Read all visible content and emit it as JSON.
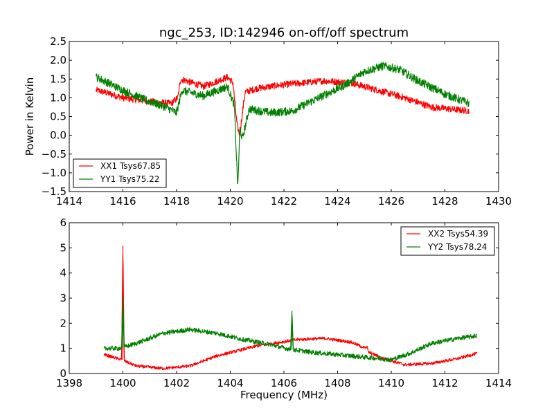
{
  "chart_data": [
    {
      "type": "line",
      "title": "ngc_253, ID:142946 on-off/off spectrum",
      "xlabel": "",
      "ylabel": "Power in Kelvin",
      "xlim": [
        1414,
        1430
      ],
      "ylim": [
        -1.5,
        2.5
      ],
      "xticks": [
        "1414",
        "1416",
        "1418",
        "1420",
        "1422",
        "1424",
        "1426",
        "1428",
        "1430"
      ],
      "yticks": [
        "−1.5",
        "−1.0",
        "−0.5",
        "0.0",
        "0.5",
        "1.0",
        "1.5",
        "2.0",
        "2.5"
      ],
      "legend_position": "lower-left",
      "grid": false,
      "series": [
        {
          "name": "XX1 Tsys67.85",
          "color": "#ff0000",
          "noise": 0.09,
          "x": [
            1415.0,
            1415.3,
            1416.0,
            1417.0,
            1417.8,
            1418.05,
            1418.15,
            1419.0,
            1419.9,
            1420.1,
            1420.25,
            1420.35,
            1420.55,
            1421.0,
            1422.0,
            1423.5,
            1424.5,
            1425.5,
            1426.5,
            1427.5,
            1428.9
          ],
          "y": [
            1.2,
            1.15,
            1.0,
            0.9,
            0.85,
            1.0,
            1.5,
            1.3,
            1.55,
            1.4,
            0.3,
            0.0,
            1.15,
            1.25,
            1.35,
            1.45,
            1.4,
            1.2,
            1.0,
            0.75,
            0.65
          ]
        },
        {
          "name": "YY1 Tsys75.22",
          "color": "#008000",
          "noise": 0.11,
          "x": [
            1415.0,
            1415.3,
            1416.0,
            1416.8,
            1417.6,
            1418.0,
            1418.2,
            1419.0,
            1419.9,
            1420.15,
            1420.28,
            1420.36,
            1420.45,
            1420.7,
            1421.5,
            1422.3,
            1423.3,
            1424.3,
            1425.0,
            1425.7,
            1426.3,
            1427.0,
            1428.0,
            1428.9
          ],
          "y": [
            1.55,
            1.45,
            1.2,
            0.95,
            0.75,
            0.6,
            1.2,
            1.05,
            1.3,
            0.8,
            -1.4,
            0.2,
            -0.1,
            0.7,
            0.6,
            0.65,
            1.0,
            1.35,
            1.7,
            1.85,
            1.75,
            1.45,
            1.1,
            0.85
          ]
        }
      ]
    },
    {
      "type": "line",
      "title": "",
      "xlabel": "Frequency (MHz)",
      "ylabel": "",
      "xlim": [
        1398,
        1414
      ],
      "ylim": [
        0,
        6
      ],
      "xticks": [
        "1398",
        "1400",
        "1402",
        "1404",
        "1406",
        "1408",
        "1410",
        "1412",
        "1414"
      ],
      "yticks": [
        "0",
        "1",
        "2",
        "3",
        "4",
        "5",
        "6"
      ],
      "legend_position": "upper-right",
      "grid": false,
      "series": [
        {
          "name": "XX2 Tsys54.39",
          "color": "#ff0000",
          "noise": 0.06,
          "x": [
            1399.3,
            1399.95,
            1400.0,
            1400.05,
            1400.5,
            1401.5,
            1402.5,
            1403.5,
            1405.0,
            1406.5,
            1407.5,
            1408.5,
            1409.05,
            1409.1,
            1409.15,
            1409.7,
            1410.5,
            1411.5,
            1412.5,
            1413.2
          ],
          "y": [
            0.75,
            0.55,
            5.1,
            0.5,
            0.3,
            0.2,
            0.3,
            0.7,
            1.1,
            1.35,
            1.4,
            1.25,
            1.0,
            1.1,
            0.85,
            0.6,
            0.35,
            0.4,
            0.6,
            0.8
          ],
          "spike_x": [
            1400.0,
            1409.1
          ]
        },
        {
          "name": "YY2 Tsys78.24",
          "color": "#008000",
          "noise": 0.09,
          "x": [
            1399.3,
            1399.95,
            1400.0,
            1400.05,
            1400.5,
            1401.5,
            1402.5,
            1403.5,
            1404.5,
            1405.5,
            1406.25,
            1406.3,
            1406.35,
            1407.0,
            1408.0,
            1409.0,
            1410.0,
            1410.7,
            1411.5,
            1412.5,
            1413.2
          ],
          "y": [
            1.0,
            1.0,
            3.0,
            1.05,
            1.2,
            1.6,
            1.75,
            1.6,
            1.35,
            1.15,
            0.95,
            2.5,
            0.95,
            0.85,
            0.75,
            0.65,
            0.55,
            0.8,
            1.2,
            1.4,
            1.5
          ],
          "spike_x": [
            1400.0,
            1406.3
          ]
        }
      ]
    }
  ]
}
